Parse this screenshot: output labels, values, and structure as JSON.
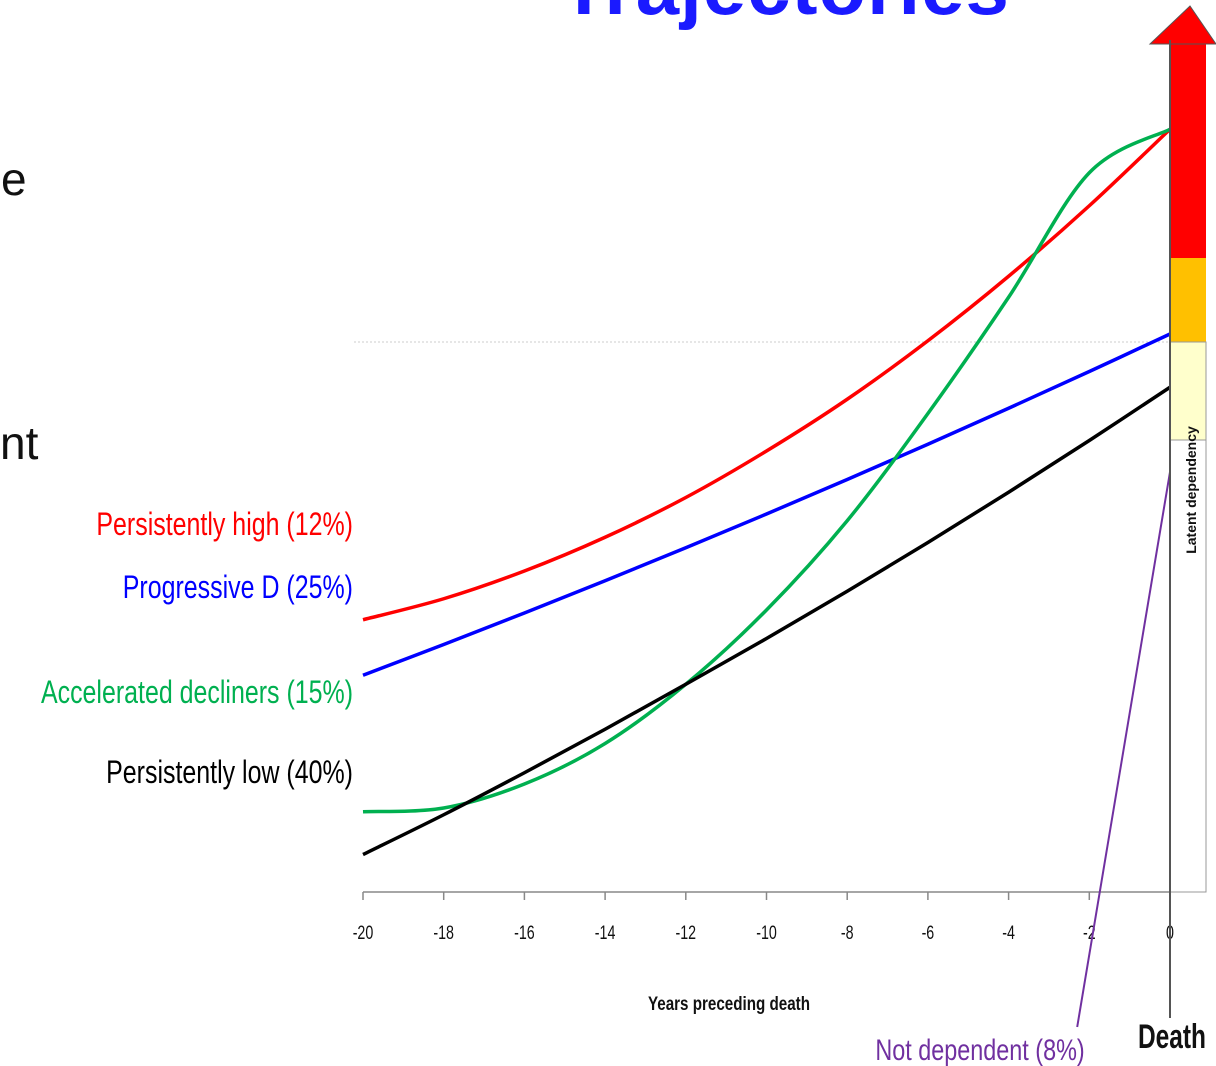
{
  "slide": {
    "title_fragment": "Trajectories",
    "left_text_fragments": [
      "e",
      "nt"
    ]
  },
  "chart_data": {
    "type": "line",
    "title": "Trajectories",
    "xlabel": "Years preceding death",
    "ylabel": "",
    "xlim": [
      -20,
      0
    ],
    "x_ticks": [
      -20,
      -18,
      -16,
      -14,
      -12,
      -10,
      -8,
      -6,
      -4,
      -2,
      0
    ],
    "series": [
      {
        "name": "Persistently high (12%)",
        "color": "#ff0000",
        "x": [
          -20,
          -18,
          -16,
          -14,
          -12,
          -10,
          -8,
          -6,
          -4,
          -2,
          0
        ],
        "values": [
          36.3,
          39.1,
          42.8,
          47.3,
          52.6,
          58.8,
          65.7,
          73.5,
          82.1,
          91.5,
          101.7
        ]
      },
      {
        "name": "Progressive D (25%)",
        "color": "#0000ff",
        "x": [
          -20,
          -18,
          -16,
          -14,
          -12,
          -10,
          -8,
          -6,
          -4,
          -2,
          0
        ],
        "values": [
          28.9,
          33.0,
          37.2,
          41.5,
          45.9,
          50.4,
          55.0,
          59.7,
          64.5,
          69.4,
          74.4
        ]
      },
      {
        "name": "Accelerated decliners (15%)",
        "color": "#00b050",
        "x": [
          -20,
          -18,
          -16,
          -14,
          -12,
          -10,
          -8,
          -6,
          -4,
          -2,
          0
        ],
        "values": [
          10.7,
          11.2,
          14.4,
          19.8,
          27.7,
          37.6,
          49.5,
          63.8,
          79.3,
          95.9,
          101.7
        ]
      },
      {
        "name": "Persistently low (40%)",
        "color": "#000000",
        "x": [
          -20,
          -18,
          -16,
          -14,
          -12,
          -10,
          -8,
          -6,
          -4,
          -2,
          0
        ],
        "values": [
          5.0,
          10.3,
          15.9,
          21.7,
          27.7,
          33.8,
          40.1,
          46.6,
          53.3,
          60.2,
          67.3
        ]
      },
      {
        "name": "Not dependent (8%)",
        "color": "#7030a0",
        "x": [
          -2.3,
          0
        ],
        "values": [
          -18,
          56
        ]
      }
    ],
    "dependency_scale": {
      "segments": [
        {
          "label": "",
          "color": "#ff0000"
        },
        {
          "label": "",
          "color": "#ffc000"
        },
        {
          "label": "Latent dependency",
          "color": "#ffffcc"
        },
        {
          "label": "",
          "color": "#ffffff"
        }
      ]
    },
    "death_label": "Death",
    "grid": false,
    "legend": "none"
  }
}
